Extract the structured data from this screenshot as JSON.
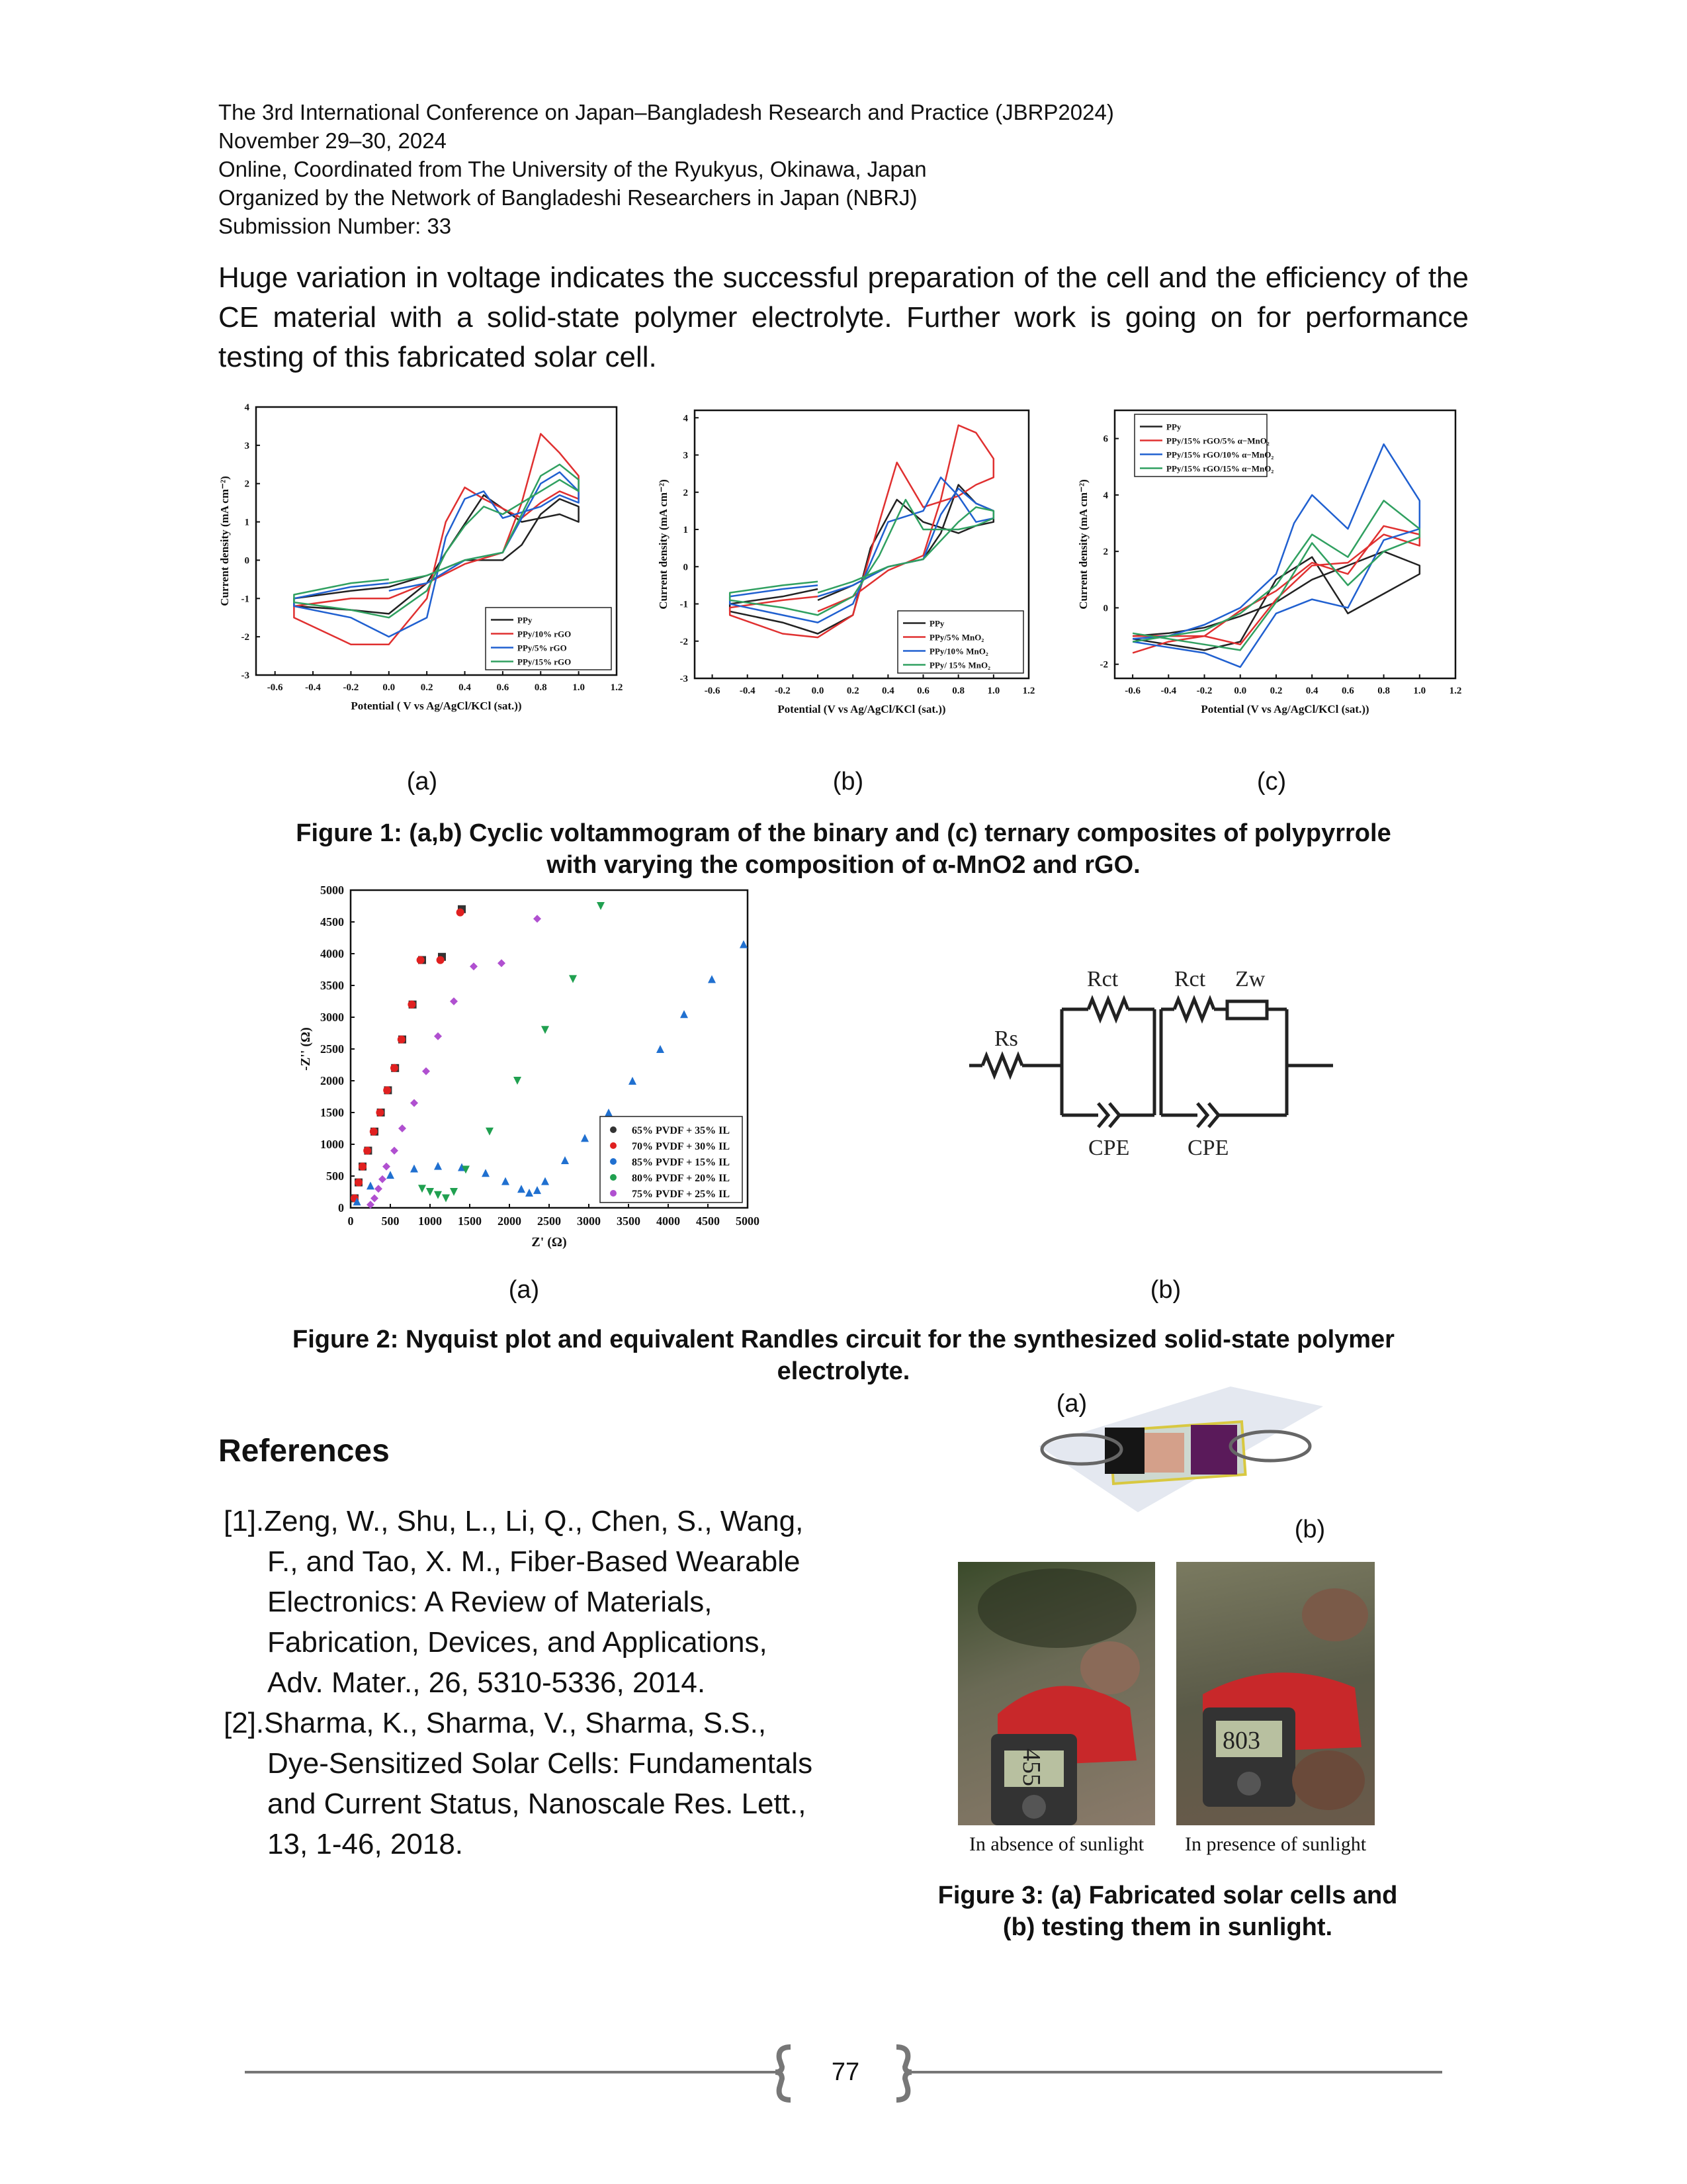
{
  "header": {
    "lines": [
      "The 3rd International Conference on Japan–Bangladesh Research and Practice (JBRP2024)",
      "November 29–30, 2024",
      "Online, Coordinated from The University of the Ryukyus, Okinawa, Japan",
      "Organized by the Network of Bangladeshi Researchers in Japan (NBRJ)",
      "Submission Number: 33"
    ]
  },
  "paragraph": "Huge variation in voltage indicates the successful preparation of the cell and the efficiency of the CE material with a solid-state polymer electrolyte. Further work is going on for performance testing of this fabricated solar cell.",
  "figure1": {
    "panel_labels": [
      "(a)",
      "(b)",
      "(c)"
    ],
    "caption_line1": "Figure 1: (a,b) Cyclic voltammogram of the binary and (c) ternary composites of polypyrrole",
    "caption_line2": "with varying the composition of α-MnO2 and rGO."
  },
  "figure2": {
    "panel_labels": [
      "(a)",
      "(b)"
    ],
    "caption_line1": "Figure 2: Nyquist plot and equivalent Randles circuit for the synthesized solid-state polymer",
    "caption_line2": "electrolyte.",
    "circuit_labels": {
      "rs": "Rs",
      "rct1": "Rct",
      "rct2": "Rct",
      "zw": "Zw",
      "cpe1": "CPE",
      "cpe2": "CPE"
    }
  },
  "figure3": {
    "label_a": "(a)",
    "label_b": "(b)",
    "photo_left_caption": "In absence of sunlight",
    "photo_right_caption": "In presence of sunlight",
    "meter_left_reading": "455",
    "meter_right_reading": "803",
    "caption_line1": "Figure 3: (a) Fabricated solar cells and",
    "caption_line2": "(b) testing them in sunlight."
  },
  "references": {
    "heading": "References",
    "items": [
      {
        "num": "[1].",
        "lines": [
          "Zeng, W., Shu, L., Li, Q., Chen, S., Wang,",
          "F., and Tao, X. M., Fiber-Based Wearable",
          "Electronics: A Review of Materials,",
          "Fabrication, Devices, and Applications,",
          "Adv. Mater., 26, 5310-5336, 2014."
        ]
      },
      {
        "num": "[2].",
        "lines": [
          "Sharma, K., Sharma, V., Sharma, S.S.,",
          "Dye-Sensitized Solar Cells: Fundamentals",
          "and Current Status, Nanoscale Res. Lett.,",
          "13, 1-46, 2018."
        ]
      }
    ]
  },
  "page_number": "77",
  "chart_data": [
    {
      "id": "fig1a",
      "type": "line",
      "xlabel": "Potential ( V vs Ag/AgCl/KCl (sat.))",
      "ylabel": "Current density (mA cm⁻²)",
      "xlim": [
        -0.7,
        1.2
      ],
      "ylim": [
        -3,
        4
      ],
      "xticks": [
        -0.6,
        -0.4,
        -0.2,
        0.0,
        0.2,
        0.4,
        0.6,
        0.8,
        1.0,
        1.2
      ],
      "yticks": [
        -3,
        -2,
        -1,
        0,
        1,
        2,
        3,
        4
      ],
      "legend_position": "bottom-right",
      "series": [
        {
          "name": "PPy",
          "color": "#222222",
          "x": [
            0.0,
            0.2,
            0.4,
            0.6,
            0.7,
            0.8,
            0.9,
            1.0,
            1.0,
            0.9,
            0.8,
            0.7,
            0.5,
            0.3,
            0.2,
            0.0,
            -0.2,
            -0.5,
            -0.5,
            -0.2,
            0.0
          ],
          "y": [
            -0.7,
            -0.4,
            0.0,
            0.0,
            0.4,
            1.2,
            1.6,
            1.4,
            1.0,
            1.2,
            1.1,
            1.0,
            1.7,
            0.2,
            -0.6,
            -1.4,
            -1.3,
            -1.2,
            -1.0,
            -0.8,
            -0.7
          ]
        },
        {
          "name": "PPy/10% rGO",
          "color": "#e03030",
          "x": [
            0.0,
            0.2,
            0.4,
            0.6,
            0.7,
            0.8,
            0.9,
            1.0,
            1.0,
            0.9,
            0.8,
            0.7,
            0.5,
            0.4,
            0.3,
            0.2,
            0.0,
            -0.2,
            -0.5,
            -0.5,
            -0.2,
            0.0
          ],
          "y": [
            -1.0,
            -0.6,
            -0.1,
            0.2,
            1.5,
            3.3,
            2.8,
            2.2,
            1.6,
            1.8,
            1.5,
            1.1,
            1.6,
            1.9,
            1.0,
            -1.0,
            -2.2,
            -2.2,
            -1.5,
            -1.2,
            -1.0,
            -1.0
          ]
        },
        {
          "name": "PPy/5% rGO",
          "color": "#2060d0",
          "x": [
            0.0,
            0.2,
            0.4,
            0.6,
            0.8,
            0.9,
            1.0,
            1.0,
            0.9,
            0.8,
            0.6,
            0.5,
            0.4,
            0.3,
            0.2,
            0.0,
            -0.2,
            -0.5,
            -0.5,
            -0.2,
            0.0
          ],
          "y": [
            -0.8,
            -0.6,
            0.0,
            0.2,
            2.0,
            2.3,
            1.8,
            1.5,
            1.7,
            1.4,
            1.1,
            1.8,
            1.6,
            0.6,
            -1.5,
            -2.0,
            -1.5,
            -1.2,
            -1.0,
            -0.7,
            -0.6
          ]
        },
        {
          "name": "PPy/15% rGO",
          "color": "#30a060",
          "x": [
            0.0,
            0.2,
            0.4,
            0.6,
            0.8,
            0.9,
            1.0,
            1.0,
            0.9,
            0.8,
            0.6,
            0.5,
            0.4,
            0.3,
            0.2,
            0.0,
            -0.2,
            -0.5,
            -0.5,
            -0.2,
            0.0
          ],
          "y": [
            -0.6,
            -0.4,
            0.0,
            0.2,
            2.2,
            2.5,
            2.1,
            1.8,
            2.1,
            1.8,
            1.2,
            1.4,
            0.9,
            0.2,
            -0.8,
            -1.5,
            -1.3,
            -1.1,
            -0.9,
            -0.6,
            -0.5
          ]
        }
      ]
    },
    {
      "id": "fig1b",
      "type": "line",
      "xlabel": "Potential (V vs Ag/AgCl/KCl (sat.))",
      "ylabel": "Current density (mA cm⁻²)",
      "xlim": [
        -0.7,
        1.2
      ],
      "ylim": [
        -3,
        4.2
      ],
      "xticks": [
        -0.6,
        -0.4,
        -0.2,
        0.0,
        0.2,
        0.4,
        0.6,
        0.8,
        1.0,
        1.2
      ],
      "yticks": [
        -3,
        -2,
        -1,
        0,
        1,
        2,
        3,
        4
      ],
      "legend_position": "bottom-right",
      "series": [
        {
          "name": "PPy",
          "color": "#222222",
          "x": [
            0.0,
            0.2,
            0.4,
            0.6,
            0.7,
            0.8,
            0.9,
            1.0,
            1.0,
            0.9,
            0.8,
            0.6,
            0.45,
            0.3,
            0.2,
            0.0,
            -0.2,
            -0.5,
            -0.5,
            -0.2,
            0.0
          ],
          "y": [
            -0.9,
            -0.5,
            0.0,
            0.2,
            0.9,
            2.2,
            1.7,
            1.5,
            1.2,
            1.1,
            0.9,
            1.2,
            1.8,
            0.5,
            -1.3,
            -1.8,
            -1.5,
            -1.2,
            -1.0,
            -0.8,
            -0.6
          ]
        },
        {
          "name": "PPy/5% MnO₂",
          "color": "#e03030",
          "x": [
            0.0,
            0.2,
            0.4,
            0.6,
            0.7,
            0.8,
            0.9,
            1.0,
            1.0,
            0.9,
            0.8,
            0.6,
            0.45,
            0.35,
            0.2,
            0.0,
            -0.2,
            -0.5,
            -0.5,
            -0.2,
            0.0
          ],
          "y": [
            -1.2,
            -0.8,
            -0.1,
            0.3,
            1.8,
            3.8,
            3.6,
            2.9,
            2.4,
            2.2,
            1.9,
            1.6,
            2.8,
            1.2,
            -1.3,
            -1.9,
            -1.8,
            -1.3,
            -1.1,
            -0.9,
            -0.8
          ]
        },
        {
          "name": "PPy/10% MnO₂",
          "color": "#2060d0",
          "x": [
            0.0,
            0.2,
            0.4,
            0.6,
            0.7,
            0.8,
            0.9,
            1.0,
            1.0,
            0.9,
            0.8,
            0.7,
            0.6,
            0.4,
            0.3,
            0.2,
            0.0,
            -0.2,
            -0.5,
            -0.5,
            -0.2,
            0.0
          ],
          "y": [
            -0.8,
            -0.5,
            0.0,
            0.2,
            1.4,
            2.1,
            1.7,
            1.5,
            1.3,
            1.2,
            1.9,
            2.4,
            1.5,
            1.2,
            0.1,
            -1.0,
            -1.5,
            -1.3,
            -1.0,
            -0.8,
            -0.6,
            -0.5
          ]
        },
        {
          "name": "PPy/ 15% MnO₂",
          "color": "#30a060",
          "x": [
            0.0,
            0.2,
            0.4,
            0.6,
            0.8,
            0.9,
            1.0,
            1.0,
            0.9,
            0.8,
            0.6,
            0.5,
            0.35,
            0.2,
            0.0,
            -0.2,
            -0.5,
            -0.5,
            -0.2,
            0.0
          ],
          "y": [
            -0.7,
            -0.4,
            0.0,
            0.2,
            1.2,
            1.6,
            1.5,
            1.3,
            1.1,
            1.0,
            1.0,
            1.8,
            0.3,
            -0.8,
            -1.3,
            -1.1,
            -0.9,
            -0.7,
            -0.5,
            -0.4
          ]
        }
      ]
    },
    {
      "id": "fig1c",
      "type": "line",
      "xlabel": "Potential (V vs Ag/AgCl/KCl (sat.))",
      "ylabel": "Current density (mA cm⁻²)",
      "xlim": [
        -0.7,
        1.2
      ],
      "ylim": [
        -2.5,
        7
      ],
      "xticks": [
        -0.6,
        -0.4,
        -0.2,
        0.0,
        0.2,
        0.4,
        0.6,
        0.8,
        1.0,
        1.2
      ],
      "yticks": [
        -2,
        0,
        2,
        4,
        6
      ],
      "legend_position": "top-left",
      "series": [
        {
          "name": "PPy",
          "color": "#222222",
          "x": [
            -0.6,
            -0.4,
            -0.2,
            0.0,
            0.2,
            0.4,
            0.6,
            0.8,
            1.0,
            1.0,
            0.8,
            0.6,
            0.4,
            0.2,
            0.0,
            -0.2,
            -0.6
          ],
          "y": [
            -1.0,
            -0.9,
            -0.7,
            -0.3,
            0.2,
            1.0,
            1.5,
            2.0,
            1.5,
            1.2,
            0.5,
            -0.2,
            1.8,
            1.0,
            -1.2,
            -1.5,
            -1.1
          ]
        },
        {
          "name": "PPy/15% rGO/5% α−MnO₂",
          "color": "#e03030",
          "x": [
            -0.6,
            -0.4,
            -0.2,
            0.0,
            0.2,
            0.4,
            0.6,
            0.8,
            1.0,
            1.0,
            0.8,
            0.6,
            0.4,
            0.2,
            0.0,
            -0.2,
            -0.6
          ],
          "y": [
            -1.6,
            -1.2,
            -1.0,
            -0.1,
            0.6,
            1.6,
            1.2,
            2.9,
            2.6,
            2.2,
            2.6,
            1.6,
            1.5,
            0.3,
            -1.3,
            -1.0,
            -1.0
          ]
        },
        {
          "name": "PPy/15% rGO/10% α−MnO₂",
          "color": "#2060d0",
          "x": [
            -0.6,
            -0.4,
            -0.2,
            0.0,
            0.2,
            0.3,
            0.4,
            0.6,
            0.8,
            1.0,
            1.0,
            0.8,
            0.6,
            0.4,
            0.2,
            0.0,
            -0.2,
            -0.6
          ],
          "y": [
            -1.1,
            -1.0,
            -0.6,
            0.0,
            1.2,
            3.0,
            4.0,
            2.8,
            5.8,
            3.8,
            2.8,
            2.4,
            0.0,
            0.3,
            -0.2,
            -2.1,
            -1.6,
            -1.2
          ]
        },
        {
          "name": "PPy/15% rGO/15% α−MnO₂",
          "color": "#30a060",
          "x": [
            -0.6,
            -0.4,
            -0.2,
            0.0,
            0.2,
            0.4,
            0.6,
            0.8,
            1.0,
            1.0,
            0.8,
            0.6,
            0.4,
            0.2,
            0.0,
            -0.2,
            -0.6
          ],
          "y": [
            -1.2,
            -1.0,
            -0.8,
            -0.2,
            0.8,
            2.6,
            1.8,
            3.8,
            2.8,
            2.5,
            2.0,
            0.8,
            2.3,
            0.2,
            -1.5,
            -1.3,
            -0.9
          ]
        }
      ]
    },
    {
      "id": "fig2a",
      "type": "scatter",
      "xlabel": "Z' (Ω)",
      "ylabel": "-Z'' (Ω)",
      "xlim": [
        0,
        5000
      ],
      "ylim": [
        0,
        5000
      ],
      "xticks": [
        0,
        500,
        1000,
        1500,
        2000,
        2500,
        3000,
        3500,
        4000,
        4500,
        5000
      ],
      "yticks": [
        0,
        500,
        1000,
        1500,
        2000,
        2500,
        3000,
        3500,
        4000,
        4500,
        5000
      ],
      "legend_position": "bottom-right",
      "series": [
        {
          "name": "65% PVDF + 35% IL",
          "color": "#333333",
          "marker": "square",
          "x": [
            50,
            100,
            150,
            220,
            300,
            380,
            470,
            560,
            650,
            780,
            900,
            1150,
            1400
          ],
          "y": [
            150,
            400,
            650,
            900,
            1200,
            1500,
            1850,
            2200,
            2650,
            3200,
            3900,
            3950,
            4700
          ]
        },
        {
          "name": "70% PVDF + 30% IL",
          "color": "#e02020",
          "marker": "circle",
          "x": [
            50,
            100,
            150,
            210,
            290,
            370,
            460,
            550,
            640,
            770,
            880,
            1130,
            1380
          ],
          "y": [
            150,
            400,
            650,
            900,
            1200,
            1500,
            1850,
            2200,
            2650,
            3200,
            3900,
            3900,
            4650
          ]
        },
        {
          "name": "85% PVDF + 15% IL",
          "color": "#2070d0",
          "marker": "triangle",
          "x": [
            80,
            250,
            500,
            800,
            1100,
            1400,
            1700,
            1950,
            2150,
            2250,
            2350,
            2450,
            2700,
            2950,
            3250,
            3550,
            3900,
            4200,
            4550,
            4950
          ],
          "y": [
            100,
            350,
            520,
            620,
            660,
            640,
            550,
            420,
            300,
            240,
            280,
            420,
            750,
            1100,
            1500,
            2000,
            2500,
            3050,
            3600,
            4150
          ]
        },
        {
          "name": "80% PVDF + 20% IL",
          "color": "#20a050",
          "marker": "triangle-down",
          "x": [
            900,
            1000,
            1100,
            1200,
            1300,
            1450,
            1750,
            2100,
            2450,
            2800,
            3150
          ],
          "y": [
            300,
            250,
            200,
            150,
            250,
            600,
            1200,
            2000,
            2800,
            3600,
            4750
          ]
        },
        {
          "name": "75% PVDF + 25% IL",
          "color": "#b050d0",
          "marker": "diamond",
          "x": [
            250,
            300,
            350,
            400,
            450,
            550,
            650,
            800,
            950,
            1100,
            1300,
            1550,
            1900,
            2350
          ],
          "y": [
            50,
            150,
            300,
            450,
            650,
            900,
            1250,
            1650,
            2150,
            2700,
            3250,
            3800,
            3850,
            4550
          ]
        }
      ]
    }
  ]
}
